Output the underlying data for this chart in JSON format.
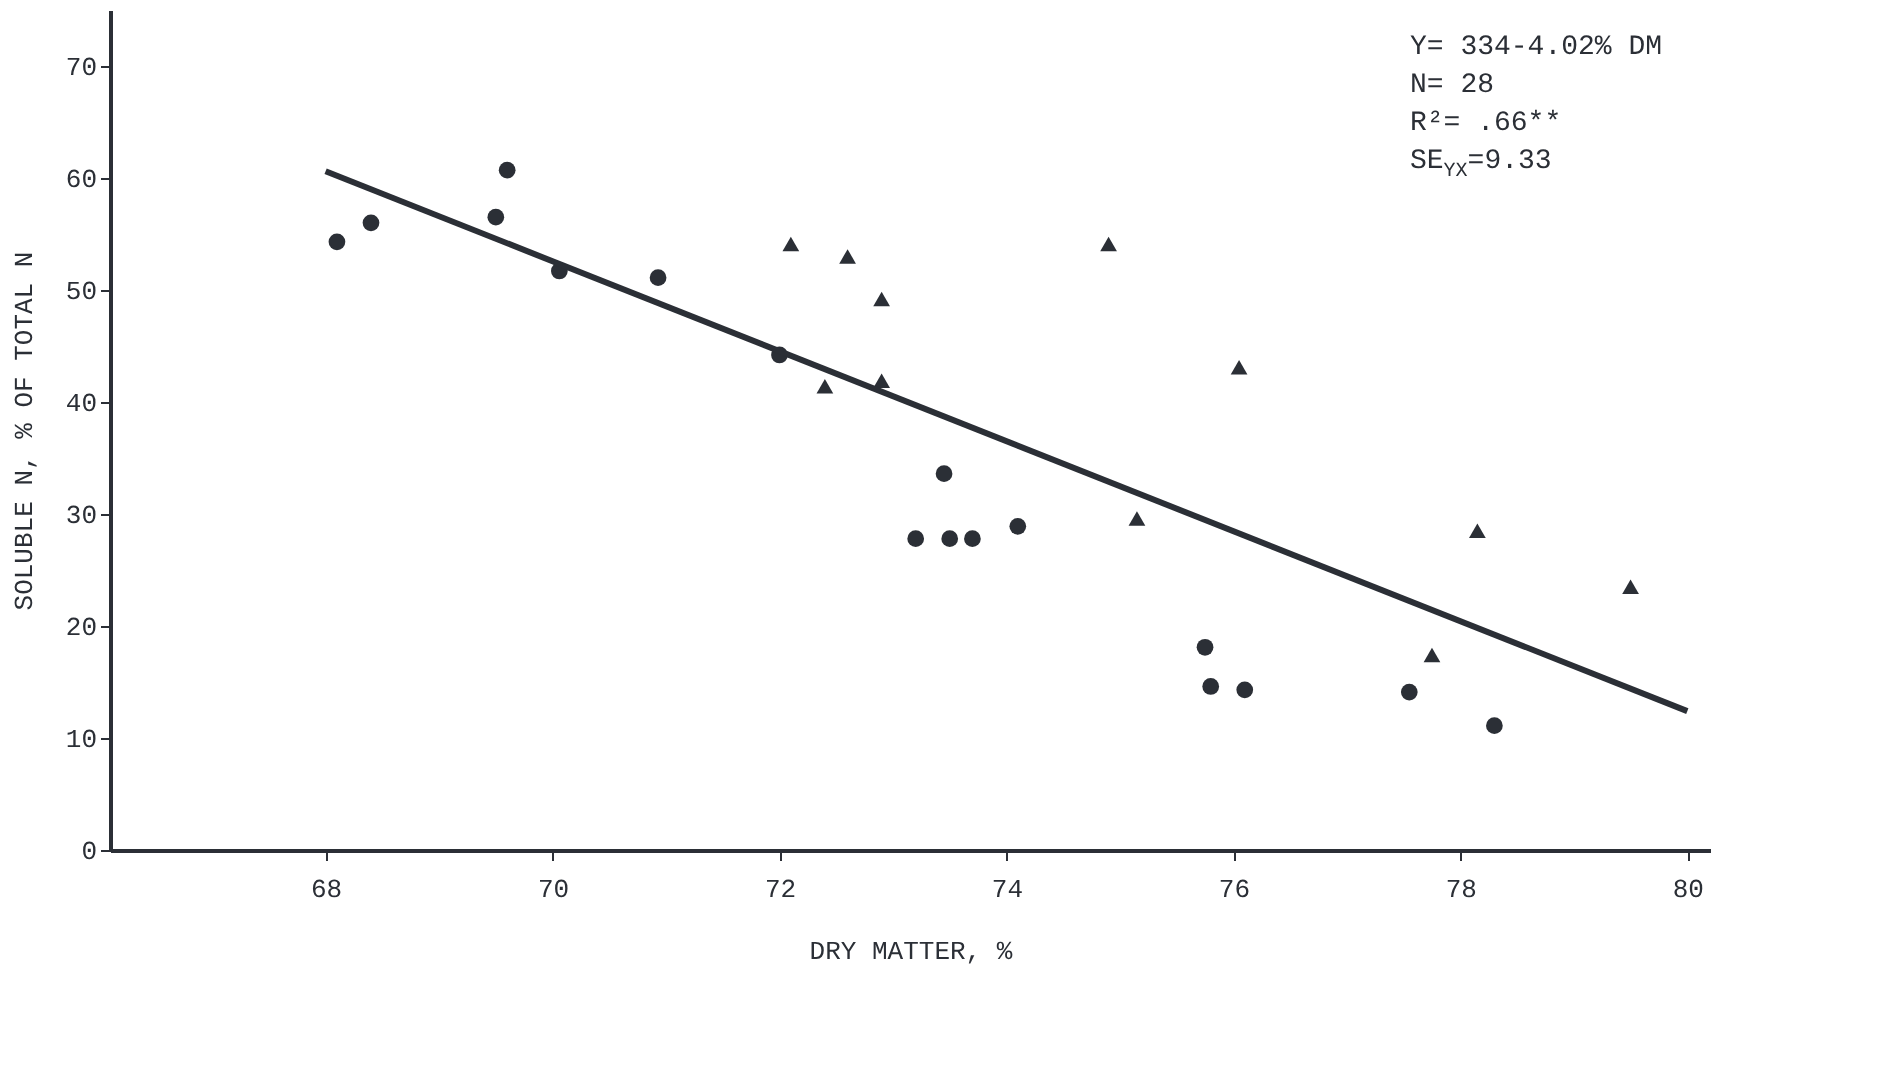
{
  "chart_data": {
    "type": "scatter",
    "xlabel": "DRY MATTER, %",
    "ylabel": "SOLUBLE N, % OF TOTAL N",
    "xlim": [
      66.1,
      80.2
    ],
    "xticks": [
      68,
      70,
      72,
      74,
      76,
      78,
      80
    ],
    "ylim": [
      0,
      75
    ],
    "yticks": [
      0,
      10,
      20,
      30,
      40,
      50,
      60,
      70
    ],
    "grid": false,
    "annotations": [
      "Y= 334-4.02% DM",
      "N= 28",
      "R²= .66**",
      "SE$_{YX}$=9.33"
    ],
    "series": [
      {
        "marker": "circle",
        "color": "#2b2f36",
        "x": [
          68.1,
          68.4,
          69.5,
          69.6,
          70.06,
          70.93,
          72.0,
          73.45,
          73.2,
          73.5,
          73.7,
          74.1,
          75.75,
          75.8,
          76.1,
          77.55,
          78.3
        ],
        "values": [
          54.3,
          56,
          56.5,
          60.7,
          51.7,
          51.1,
          44.2,
          33.6,
          27.8,
          27.8,
          27.8,
          28.9,
          18.1,
          14.6,
          14.3,
          14.1,
          11.1
        ]
      },
      {
        "marker": "triangle",
        "color": "#2b2f36",
        "x": [
          72.1,
          72.6,
          72.9,
          72.9,
          72.4,
          74.9,
          76.05,
          75.15,
          77.75,
          78.15,
          79.5
        ],
        "values": [
          54.1,
          53,
          49.2,
          41.9,
          41.4,
          54.1,
          43.1,
          29.6,
          17.4,
          28.5,
          23.5
        ]
      },
      {
        "type": "line",
        "color": "#2b2f36",
        "x": [
          68,
          80
        ],
        "values": [
          60.6,
          12.4
        ]
      }
    ]
  }
}
